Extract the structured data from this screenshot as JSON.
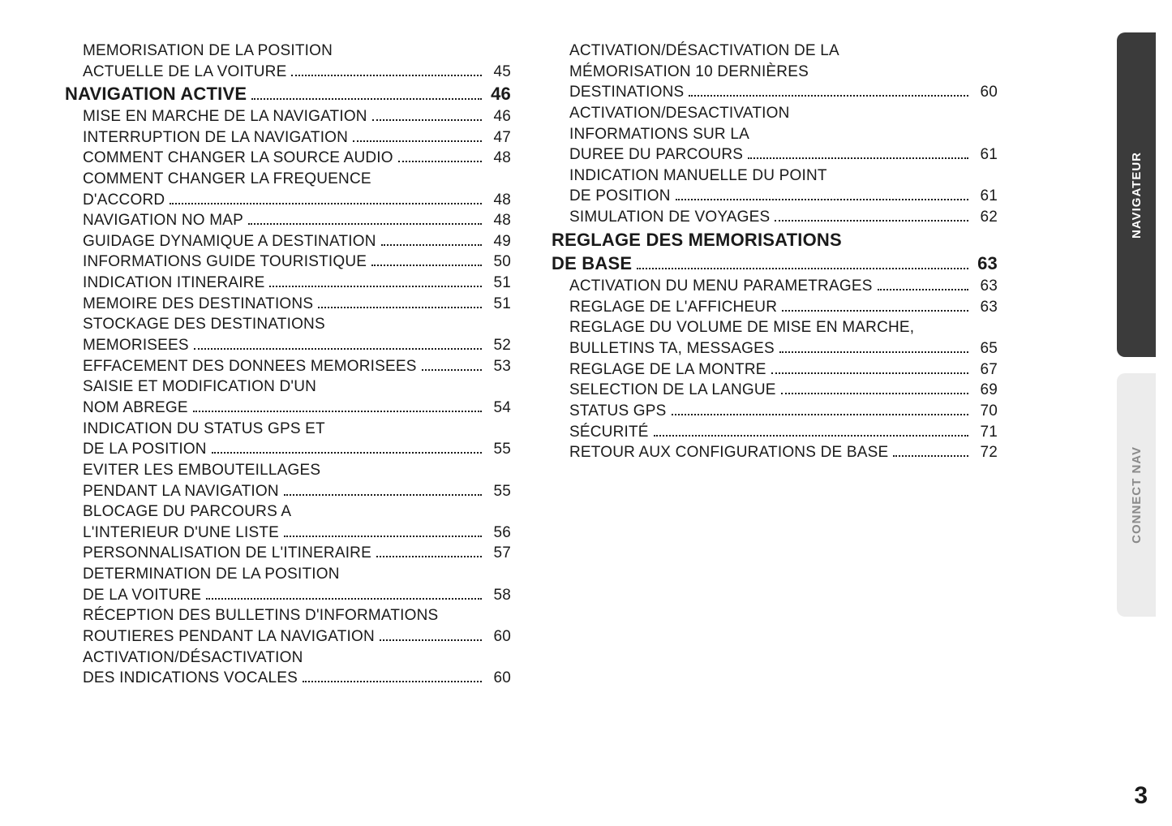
{
  "page_number": "3",
  "tabs": {
    "active": "NAVIGATEUR",
    "inactive": "CONNECT NAV"
  },
  "colors": {
    "text": "#1a1a1a",
    "tab_active_bg": "#3b3b3b",
    "tab_active_text": "#ffffff",
    "tab_inactive_bg": "#ececec",
    "tab_inactive_text": "#8a8a8a",
    "background": "#ffffff"
  },
  "typography": {
    "body_fontsize": 19,
    "heading_fontsize": 22,
    "pagenum_fontsize": 30,
    "font_family": "Arial"
  },
  "left": [
    {
      "lines": [
        "MEMORISATION DE LA POSITION",
        "ACTUELLE DE LA VOITURE"
      ],
      "page": "45",
      "indent": true
    },
    {
      "lines": [
        "NAVIGATION ACTIVE"
      ],
      "page": "46",
      "heading": true
    },
    {
      "lines": [
        "MISE EN MARCHE DE LA NAVIGATION"
      ],
      "page": "46",
      "indent": true
    },
    {
      "lines": [
        "INTERRUPTION DE LA NAVIGATION"
      ],
      "page": "47",
      "indent": true
    },
    {
      "lines": [
        "COMMENT CHANGER LA SOURCE AUDIO"
      ],
      "page": "48",
      "indent": true
    },
    {
      "lines": [
        "COMMENT CHANGER LA FREQUENCE",
        "D'ACCORD"
      ],
      "page": "48",
      "indent": true
    },
    {
      "lines": [
        "NAVIGATION NO MAP"
      ],
      "page": "48",
      "indent": true
    },
    {
      "lines": [
        "GUIDAGE DYNAMIQUE A DESTINATION"
      ],
      "page": "49",
      "indent": true
    },
    {
      "lines": [
        "INFORMATIONS GUIDE TOURISTIQUE"
      ],
      "page": "50",
      "indent": true
    },
    {
      "lines": [
        "INDICATION ITINERAIRE"
      ],
      "page": "51",
      "indent": true
    },
    {
      "lines": [
        "MEMOIRE DES DESTINATIONS"
      ],
      "page": "51",
      "indent": true
    },
    {
      "lines": [
        "STOCKAGE DES DESTINATIONS",
        "MEMORISEES"
      ],
      "page": "52",
      "indent": true
    },
    {
      "lines": [
        "EFFACEMENT DES DONNEES MEMORISEES"
      ],
      "page": "53",
      "indent": true
    },
    {
      "lines": [
        "SAISIE ET MODIFICATION D'UN",
        "NOM ABREGE"
      ],
      "page": "54",
      "indent": true
    },
    {
      "lines": [
        "INDICATION DU STATUS GPS ET",
        "DE LA POSITION"
      ],
      "page": "55",
      "indent": true
    },
    {
      "lines": [
        "EVITER LES EMBOUTEILLAGES",
        "PENDANT LA NAVIGATION"
      ],
      "page": "55",
      "indent": true
    },
    {
      "lines": [
        "BLOCAGE DU PARCOURS A",
        "L'INTERIEUR D'UNE LISTE"
      ],
      "page": "56",
      "indent": true
    },
    {
      "lines": [
        "PERSONNALISATION DE L'ITINERAIRE"
      ],
      "page": "57",
      "indent": true
    },
    {
      "lines": [
        "DETERMINATION DE LA POSITION",
        "DE LA VOITURE"
      ],
      "page": "58",
      "indent": true
    },
    {
      "lines": [
        "RÉCEPTION DES BULLETINS D'INFORMATIONS",
        "ROUTIERES PENDANT LA NAVIGATION"
      ],
      "page": "60",
      "indent": true
    },
    {
      "lines": [
        "ACTIVATION/DÉSACTIVATION",
        "DES INDICATIONS VOCALES"
      ],
      "page": "60",
      "indent": true
    }
  ],
  "right": [
    {
      "lines": [
        "ACTIVATION/DÉSACTIVATION DE LA",
        "MÉMORISATION 10 DERNIÈRES",
        "DESTINATIONS"
      ],
      "page": "60",
      "indent": true
    },
    {
      "lines": [
        "ACTIVATION/DESACTIVATION",
        "INFORMATIONS SUR LA",
        "DUREE DU PARCOURS"
      ],
      "page": "61",
      "indent": true
    },
    {
      "lines": [
        "INDICATION MANUELLE DU POINT",
        "DE POSITION"
      ],
      "page": "61",
      "indent": true
    },
    {
      "lines": [
        "SIMULATION DE VOYAGES"
      ],
      "page": "62",
      "indent": true
    },
    {
      "lines": [
        "REGLAGE DES MEMORISATIONS",
        "DE BASE"
      ],
      "page": "63",
      "heading": true
    },
    {
      "lines": [
        "ACTIVATION DU MENU PARAMETRAGES"
      ],
      "page": "63",
      "indent": true
    },
    {
      "lines": [
        "REGLAGE DE L'AFFICHEUR"
      ],
      "page": "63",
      "indent": true
    },
    {
      "lines": [
        "REGLAGE DU VOLUME DE MISE EN MARCHE,",
        "BULLETINS TA, MESSAGES"
      ],
      "page": "65",
      "indent": true
    },
    {
      "lines": [
        "REGLAGE DE LA MONTRE"
      ],
      "page": "67",
      "indent": true
    },
    {
      "lines": [
        "SELECTION DE LA LANGUE"
      ],
      "page": "69",
      "indent": true
    },
    {
      "lines": [
        "STATUS GPS"
      ],
      "page": "70",
      "indent": true
    },
    {
      "lines": [
        "SÉCURITÉ"
      ],
      "page": "71",
      "indent": true
    },
    {
      "lines": [
        "RETOUR AUX CONFIGURATIONS DE BASE"
      ],
      "page": "72",
      "indent": true
    }
  ]
}
